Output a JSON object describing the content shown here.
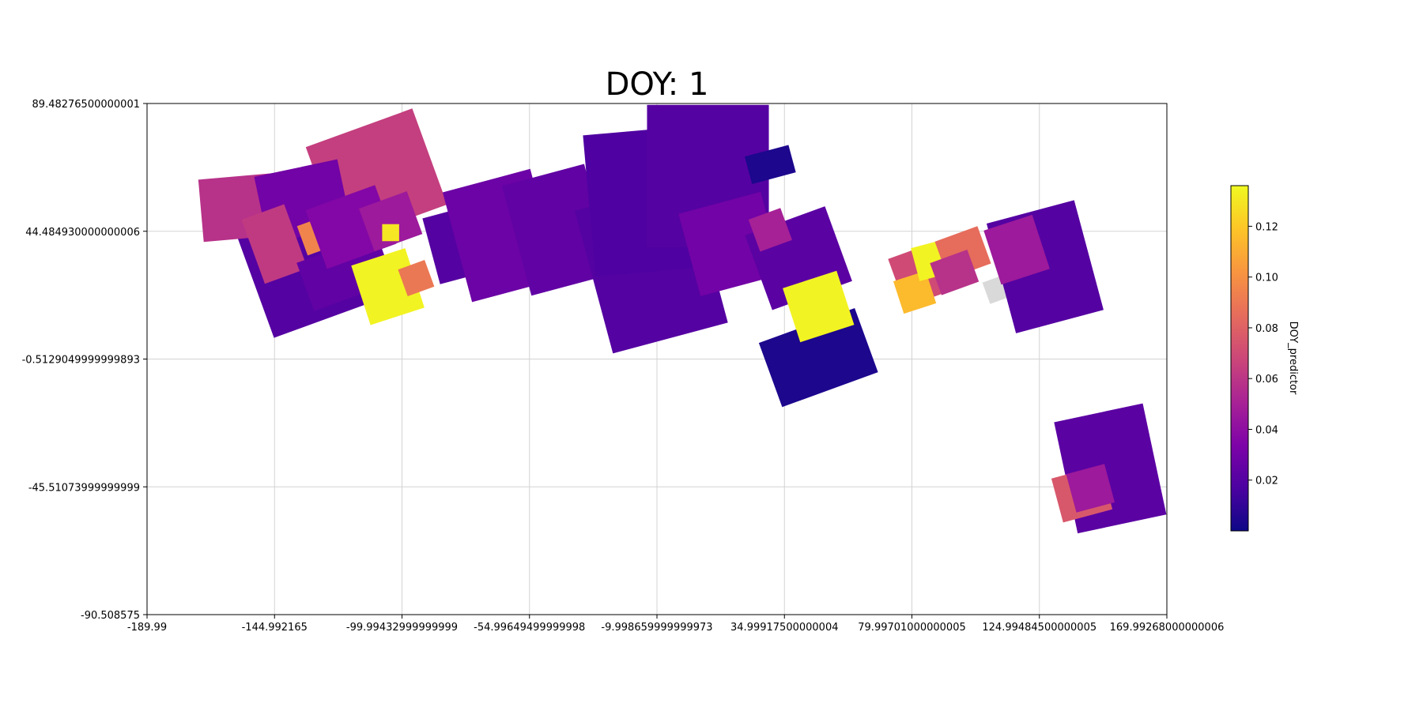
{
  "chart_data": {
    "type": "heatmap",
    "title": "DOY: 1",
    "xlabel": "",
    "ylabel": "",
    "xlim": [
      -189.99,
      169.99268000000006
    ],
    "ylim": [
      -90.508575,
      89.48276500000001
    ],
    "x_ticks": [
      -189.99,
      -144.992165,
      -99.99432999999999,
      -54.99649499999998,
      -9.998659999999973,
      34.99917500000004,
      79.99701000000005,
      124.99484500000005,
      169.99268000000006
    ],
    "x_tick_labels": [
      "-189.99",
      "-144.992165",
      "-99.99432999999999",
      "-54.99649499999998",
      "-9.998659999999973",
      "34.99917500000004",
      "79.99701000000005",
      "124.99484500000005",
      "169.99268000000006"
    ],
    "y_ticks": [
      89.48276500000001,
      44.484930000000006,
      -0.5129049999999893,
      -45.51073999999999,
      -90.508575
    ],
    "y_tick_labels": [
      "89.48276500000001",
      "44.484930000000006",
      "-0.5129049999999893",
      "-45.51073999999999",
      "-90.508575"
    ],
    "grid": true,
    "colormap": "plasma",
    "colorbar": {
      "label": "DOY_predictor",
      "min": 0.0,
      "max": 0.136,
      "ticks": [
        0.02,
        0.04,
        0.06,
        0.08,
        0.1,
        0.12
      ],
      "tick_labels": [
        "0.02",
        "0.04",
        "0.06",
        "0.08",
        "0.10",
        "0.12"
      ]
    },
    "nodata_color": "#d9d9d9",
    "regions": [
      {
        "cx": -135,
        "cy": 33,
        "w": 37,
        "h": 42,
        "angle": -20,
        "value": 0.02
      },
      {
        "cx": -156,
        "cy": 53,
        "w": 30,
        "h": 22,
        "angle": -5,
        "value": 0.058
      },
      {
        "cx": -109,
        "cy": 64,
        "w": 40,
        "h": 36,
        "angle": -20,
        "value": 0.064
      },
      {
        "cx": -135,
        "cy": 55,
        "w": 30,
        "h": 24,
        "angle": -12,
        "value": 0.03
      },
      {
        "cx": -145,
        "cy": 40,
        "w": 16,
        "h": 24,
        "angle": -20,
        "value": 0.062
      },
      {
        "cx": -130,
        "cy": 43,
        "w": 11,
        "h": 11,
        "angle": -20,
        "value": 0.095
      },
      {
        "cx": -120,
        "cy": 30,
        "w": 30,
        "h": 18,
        "angle": -20,
        "value": 0.024
      },
      {
        "cx": -118,
        "cy": 46,
        "w": 26,
        "h": 22,
        "angle": -20,
        "value": 0.036
      },
      {
        "cx": -104,
        "cy": 48,
        "w": 18,
        "h": 16,
        "angle": -20,
        "value": 0.046
      },
      {
        "cx": -105,
        "cy": 25,
        "w": 20,
        "h": 22,
        "angle": -18,
        "value": 0.134
      },
      {
        "cx": -95,
        "cy": 28,
        "w": 10,
        "h": 10,
        "angle": -20,
        "value": 0.09
      },
      {
        "cx": -104,
        "cy": 44,
        "w": 6,
        "h": 6,
        "angle": 0,
        "value": 0.13
      },
      {
        "cx": -80,
        "cy": 40,
        "w": 20,
        "h": 24,
        "angle": -15,
        "value": 0.02
      },
      {
        "cx": -65,
        "cy": 43,
        "w": 32,
        "h": 40,
        "angle": -15,
        "value": 0.028
      },
      {
        "cx": -45,
        "cy": 45,
        "w": 30,
        "h": 40,
        "angle": -15,
        "value": 0.024
      },
      {
        "cx": -12,
        "cy": 32,
        "w": 42,
        "h": 52,
        "angle": -15,
        "value": 0.02
      },
      {
        "cx": -15,
        "cy": 55,
        "w": 38,
        "h": 50,
        "angle": -5,
        "value": 0.018
      },
      {
        "cx": 8,
        "cy": 64,
        "w": 43,
        "h": 50,
        "angle": 0,
        "value": 0.02
      },
      {
        "cx": 16,
        "cy": 40,
        "w": 30,
        "h": 30,
        "angle": -15,
        "value": 0.03
      },
      {
        "cx": 40,
        "cy": 35,
        "w": 30,
        "h": 28,
        "angle": -20,
        "value": 0.022
      },
      {
        "cx": 30,
        "cy": 45,
        "w": 12,
        "h": 12,
        "angle": -20,
        "value": 0.05
      },
      {
        "cx": 30,
        "cy": 68,
        "w": 16,
        "h": 10,
        "angle": -15,
        "value": 0.004
      },
      {
        "cx": 47,
        "cy": 0,
        "w": 36,
        "h": 24,
        "angle": -20,
        "value": 0.004
      },
      {
        "cx": 47,
        "cy": 18,
        "w": 20,
        "h": 20,
        "angle": -18,
        "value": 0.134
      },
      {
        "cx": 85,
        "cy": 30,
        "w": 22,
        "h": 18,
        "angle": -20,
        "value": 0.07
      },
      {
        "cx": 81,
        "cy": 23,
        "w": 12,
        "h": 12,
        "angle": -18,
        "value": 0.115
      },
      {
        "cx": 86,
        "cy": 34,
        "w": 10,
        "h": 12,
        "angle": -15,
        "value": 0.134
      },
      {
        "cx": 98,
        "cy": 37,
        "w": 16,
        "h": 14,
        "angle": -20,
        "value": 0.085
      },
      {
        "cx": 95,
        "cy": 30,
        "w": 14,
        "h": 12,
        "angle": -20,
        "value": 0.058
      },
      {
        "cx": 110,
        "cy": 24,
        "w": 8,
        "h": 8,
        "angle": -20,
        "value": -1
      },
      {
        "cx": 127,
        "cy": 32,
        "w": 32,
        "h": 40,
        "angle": -15,
        "value": 0.02
      },
      {
        "cx": 117,
        "cy": 38,
        "w": 18,
        "h": 20,
        "angle": -18,
        "value": 0.046
      },
      {
        "cx": 150,
        "cy": -39,
        "w": 32,
        "h": 40,
        "angle": -12,
        "value": 0.022
      },
      {
        "cx": 140,
        "cy": -48,
        "w": 18,
        "h": 16,
        "angle": -15,
        "value": 0.076
      },
      {
        "cx": 143,
        "cy": -46,
        "w": 14,
        "h": 14,
        "angle": -15,
        "value": 0.046
      }
    ]
  }
}
